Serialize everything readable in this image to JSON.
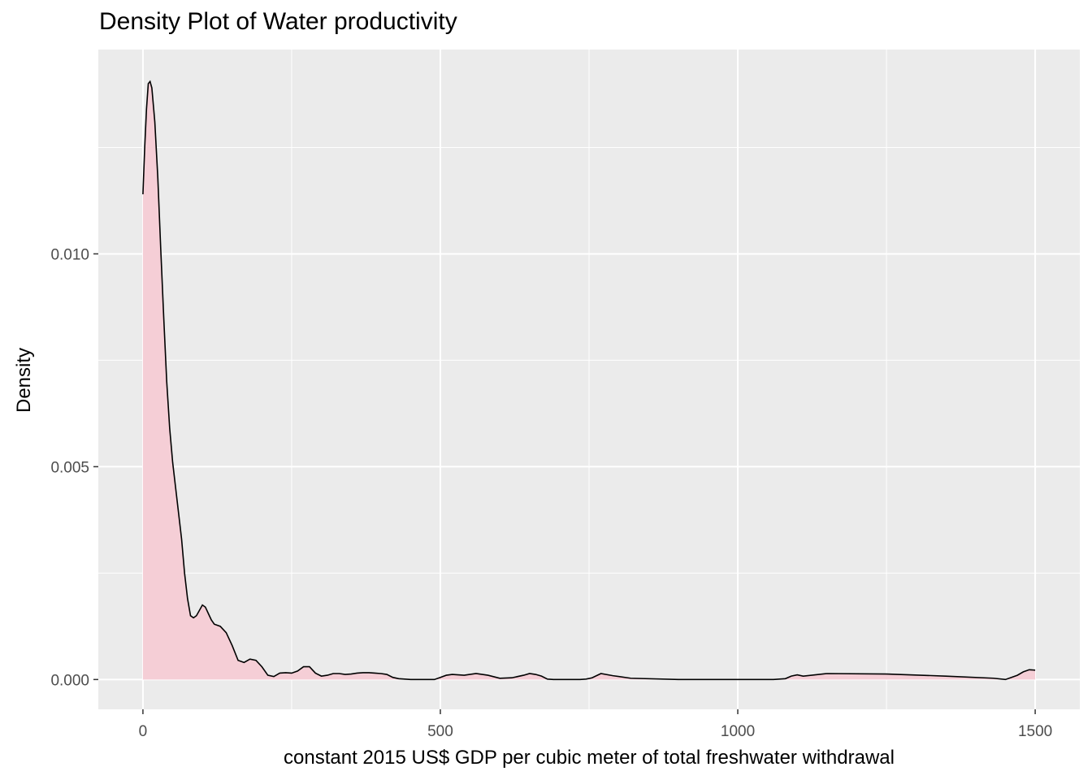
{
  "chart_data": {
    "type": "area",
    "title": "Density Plot of Water productivity",
    "xlabel": "constant 2015 US$ GDP per cubic meter of total freshwater withdrawal",
    "ylabel": "Density",
    "xlim": [
      -75,
      1575
    ],
    "ylim": [
      -0.0007,
      0.0148
    ],
    "x_ticks": [
      0,
      500,
      1000,
      1500
    ],
    "x_tick_labels": [
      "0",
      "500",
      "1000",
      "1500"
    ],
    "y_ticks": [
      0.0,
      0.005,
      0.01
    ],
    "y_tick_labels": [
      "0.000",
      "0.005",
      "0.010"
    ],
    "x_minor": [
      250,
      750,
      1250
    ],
    "y_minor": [
      0.0025,
      0.0075,
      0.0125
    ],
    "grid": true,
    "fill_color": "#f5ced6",
    "line_color": "#000000",
    "panel_color": "#ebebeb",
    "grid_color": "#ffffff",
    "x": [
      0,
      3,
      6,
      9,
      12,
      15,
      20,
      25,
      30,
      35,
      40,
      45,
      50,
      55,
      60,
      65,
      70,
      75,
      80,
      85,
      90,
      100,
      105,
      110,
      115,
      120,
      130,
      140,
      150,
      160,
      170,
      180,
      190,
      200,
      210,
      220,
      230,
      240,
      250,
      260,
      270,
      280,
      290,
      300,
      310,
      320,
      330,
      340,
      350,
      360,
      370,
      380,
      390,
      400,
      410,
      420,
      430,
      440,
      450,
      460,
      470,
      480,
      490,
      500,
      510,
      520,
      540,
      560,
      580,
      600,
      620,
      640,
      650,
      660,
      670,
      680,
      690,
      700,
      720,
      735,
      745,
      755,
      770,
      790,
      820,
      900,
      1000,
      1040,
      1060,
      1070,
      1080,
      1090,
      1100,
      1110,
      1150,
      1250,
      1350,
      1430,
      1450,
      1460,
      1470,
      1480,
      1490,
      1500
    ],
    "y": [
      0.0114,
      0.0125,
      0.0134,
      0.014,
      0.01405,
      0.0139,
      0.0131,
      0.0118,
      0.0101,
      0.0085,
      0.007,
      0.0059,
      0.0051,
      0.0045,
      0.0039,
      0.0033,
      0.0025,
      0.0019,
      0.0015,
      0.00145,
      0.0015,
      0.00175,
      0.0017,
      0.00155,
      0.0014,
      0.0013,
      0.00125,
      0.0011,
      0.0008,
      0.00045,
      0.0004,
      0.00048,
      0.00045,
      0.0003,
      0.0001,
      7e-05,
      0.00015,
      0.00016,
      0.00015,
      0.0002,
      0.0003,
      0.0003,
      0.00015,
      8e-05,
      0.0001,
      0.00014,
      0.00014,
      0.00012,
      0.00013,
      0.00015,
      0.00016,
      0.00016,
      0.00015,
      0.00014,
      0.00012,
      5e-05,
      2e-05,
      1e-05,
      0.0,
      0.0,
      0.0,
      0.0,
      0.0,
      5e-05,
      0.0001,
      0.00012,
      0.0001,
      0.00014,
      0.0001,
      3e-05,
      4e-05,
      0.0001,
      0.00014,
      0.00012,
      8e-05,
      1e-05,
      0.0,
      0.0,
      0.0,
      0.0,
      1e-05,
      4e-05,
      0.00014,
      9e-05,
      3e-05,
      0.0,
      0.0,
      0.0,
      0.0,
      1e-05,
      2e-05,
      8e-05,
      0.00011,
      8e-05,
      0.00014,
      0.00013,
      8e-05,
      3e-05,
      0.0,
      5e-05,
      0.0001,
      0.00018,
      0.00023,
      0.00022
    ]
  }
}
